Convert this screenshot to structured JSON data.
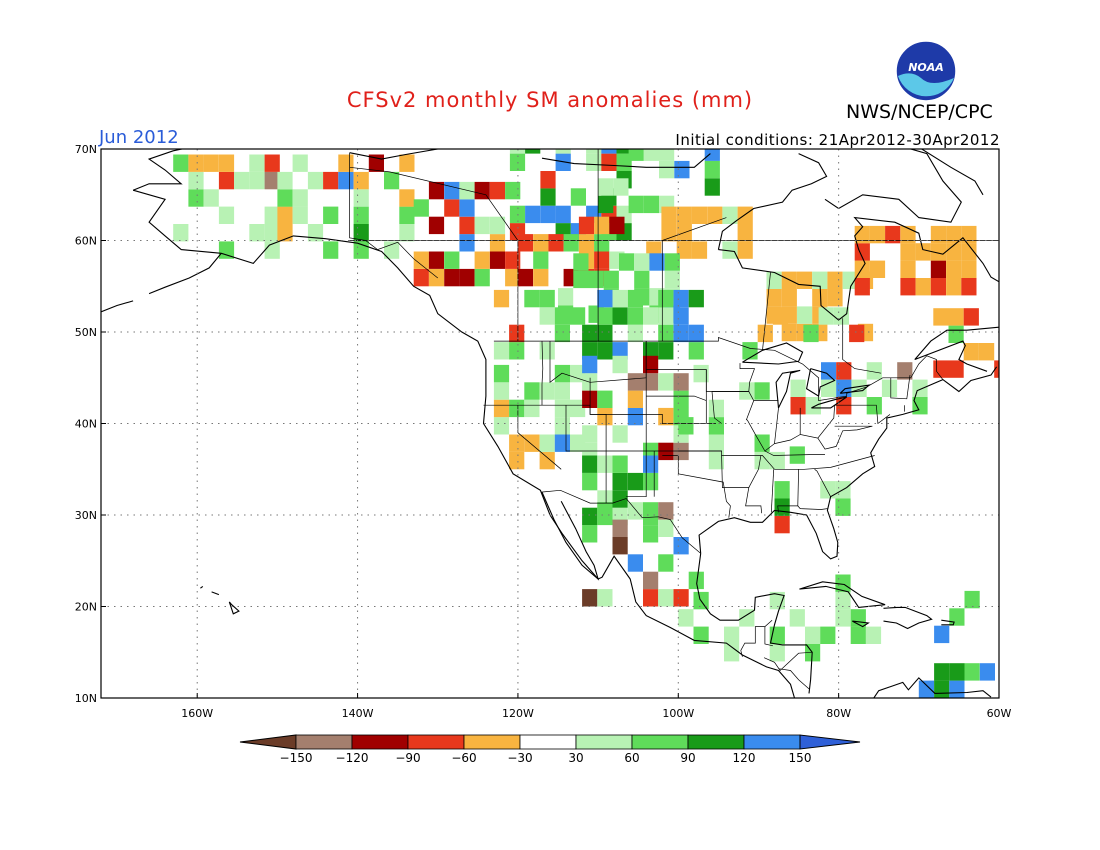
{
  "header": {
    "title": "CFSv2 monthly SM anomalies (mm)",
    "agency": "NWS/NCEP/CPC",
    "month": "Jun 2012",
    "initial_conditions": "Initial conditions: 21Apr2012-30Apr2012",
    "logo_text": "NOAA"
  },
  "map": {
    "lon_range": [
      -172,
      -60
    ],
    "lat_range": [
      10,
      70
    ],
    "lat_labels": [
      "10N",
      "20N",
      "30N",
      "40N",
      "50N",
      "60N",
      "70N"
    ],
    "lon_labels": [
      "160W",
      "140W",
      "120W",
      "100W",
      "80W",
      "60W"
    ],
    "grid": "dotted"
  },
  "colorbar": {
    "labels": [
      "-150",
      "-120",
      "-90",
      "-60",
      "-30",
      "30",
      "60",
      "90",
      "120",
      "150"
    ],
    "colors": [
      "#6b3c28",
      "#a47f6e",
      "#a00000",
      "#e8381c",
      "#f8b440",
      "#ffffff",
      "#b8f2b4",
      "#5fdc5a",
      "#199b19",
      "#3a8cee",
      "#2f60d8"
    ]
  }
}
